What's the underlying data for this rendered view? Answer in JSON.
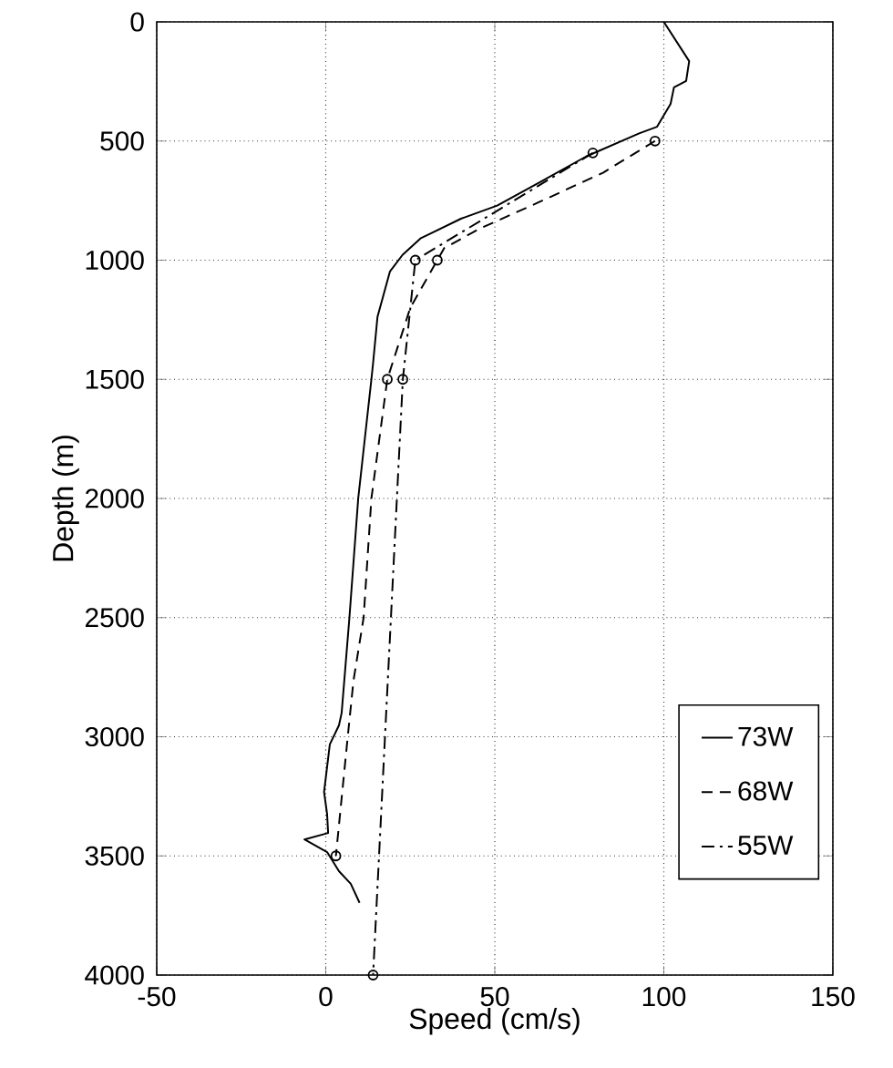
{
  "chart_data": {
    "type": "line",
    "xlabel": "Speed (cm/s)",
    "ylabel": "Depth (m)",
    "xlim": [
      -50,
      150
    ],
    "xticks": [
      -50,
      0,
      50,
      100,
      150
    ],
    "ylim": [
      4000,
      0
    ],
    "yticks": [
      0,
      500,
      1000,
      1500,
      2000,
      2500,
      3000,
      3500,
      4000
    ],
    "grid": true,
    "legend": "right",
    "series": [
      {
        "name": "73W",
        "color": "#000000",
        "line_style": "solid",
        "x": [
          100,
          107.5,
          106.6,
          103,
          102,
          98,
          92.7,
          77,
          63,
          50.7,
          40,
          28,
          22.7,
          19,
          15.3,
          14,
          13.5,
          9.6,
          7,
          4.7,
          3.9,
          1.2,
          -0.5,
          0.4,
          0.7,
          -6.3,
          0.4,
          3.9,
          7.4,
          10
        ],
        "values": [
          0,
          165,
          248,
          275,
          344,
          440,
          468,
          565,
          675,
          771,
          826,
          909,
          978,
          1047,
          1238,
          1432,
          1500,
          2000,
          2500,
          2900,
          2952,
          3032,
          3232,
          3325,
          3404,
          3431,
          3484,
          3564,
          3617,
          3697
        ]
      },
      {
        "name": "68W",
        "color": "#000000",
        "line_style": "dashed",
        "x": [
          97.4,
          82,
          63,
          45.5,
          35,
          33,
          25,
          18.2,
          13.5,
          11.2,
          8.2,
          6.5,
          3
        ],
        "values": [
          500,
          633,
          757,
          868,
          950,
          1000,
          1200,
          1500,
          2000,
          2500,
          2765,
          3000,
          3500
        ]
      },
      {
        "name": "55W",
        "color": "#000000",
        "line_style": "dashdot",
        "x": [
          79,
          26.5,
          22.8,
          14
        ],
        "values": [
          550,
          1000,
          1500,
          4000
        ]
      },
      {
        "type": "scatter",
        "color": "#000000",
        "marker": "circle",
        "x": [
          97.4,
          79,
          26.5,
          33,
          18.2,
          22.8,
          3,
          14
        ],
        "values": [
          500,
          550,
          1000,
          1000,
          1500,
          1500,
          3500,
          4000
        ]
      }
    ]
  }
}
